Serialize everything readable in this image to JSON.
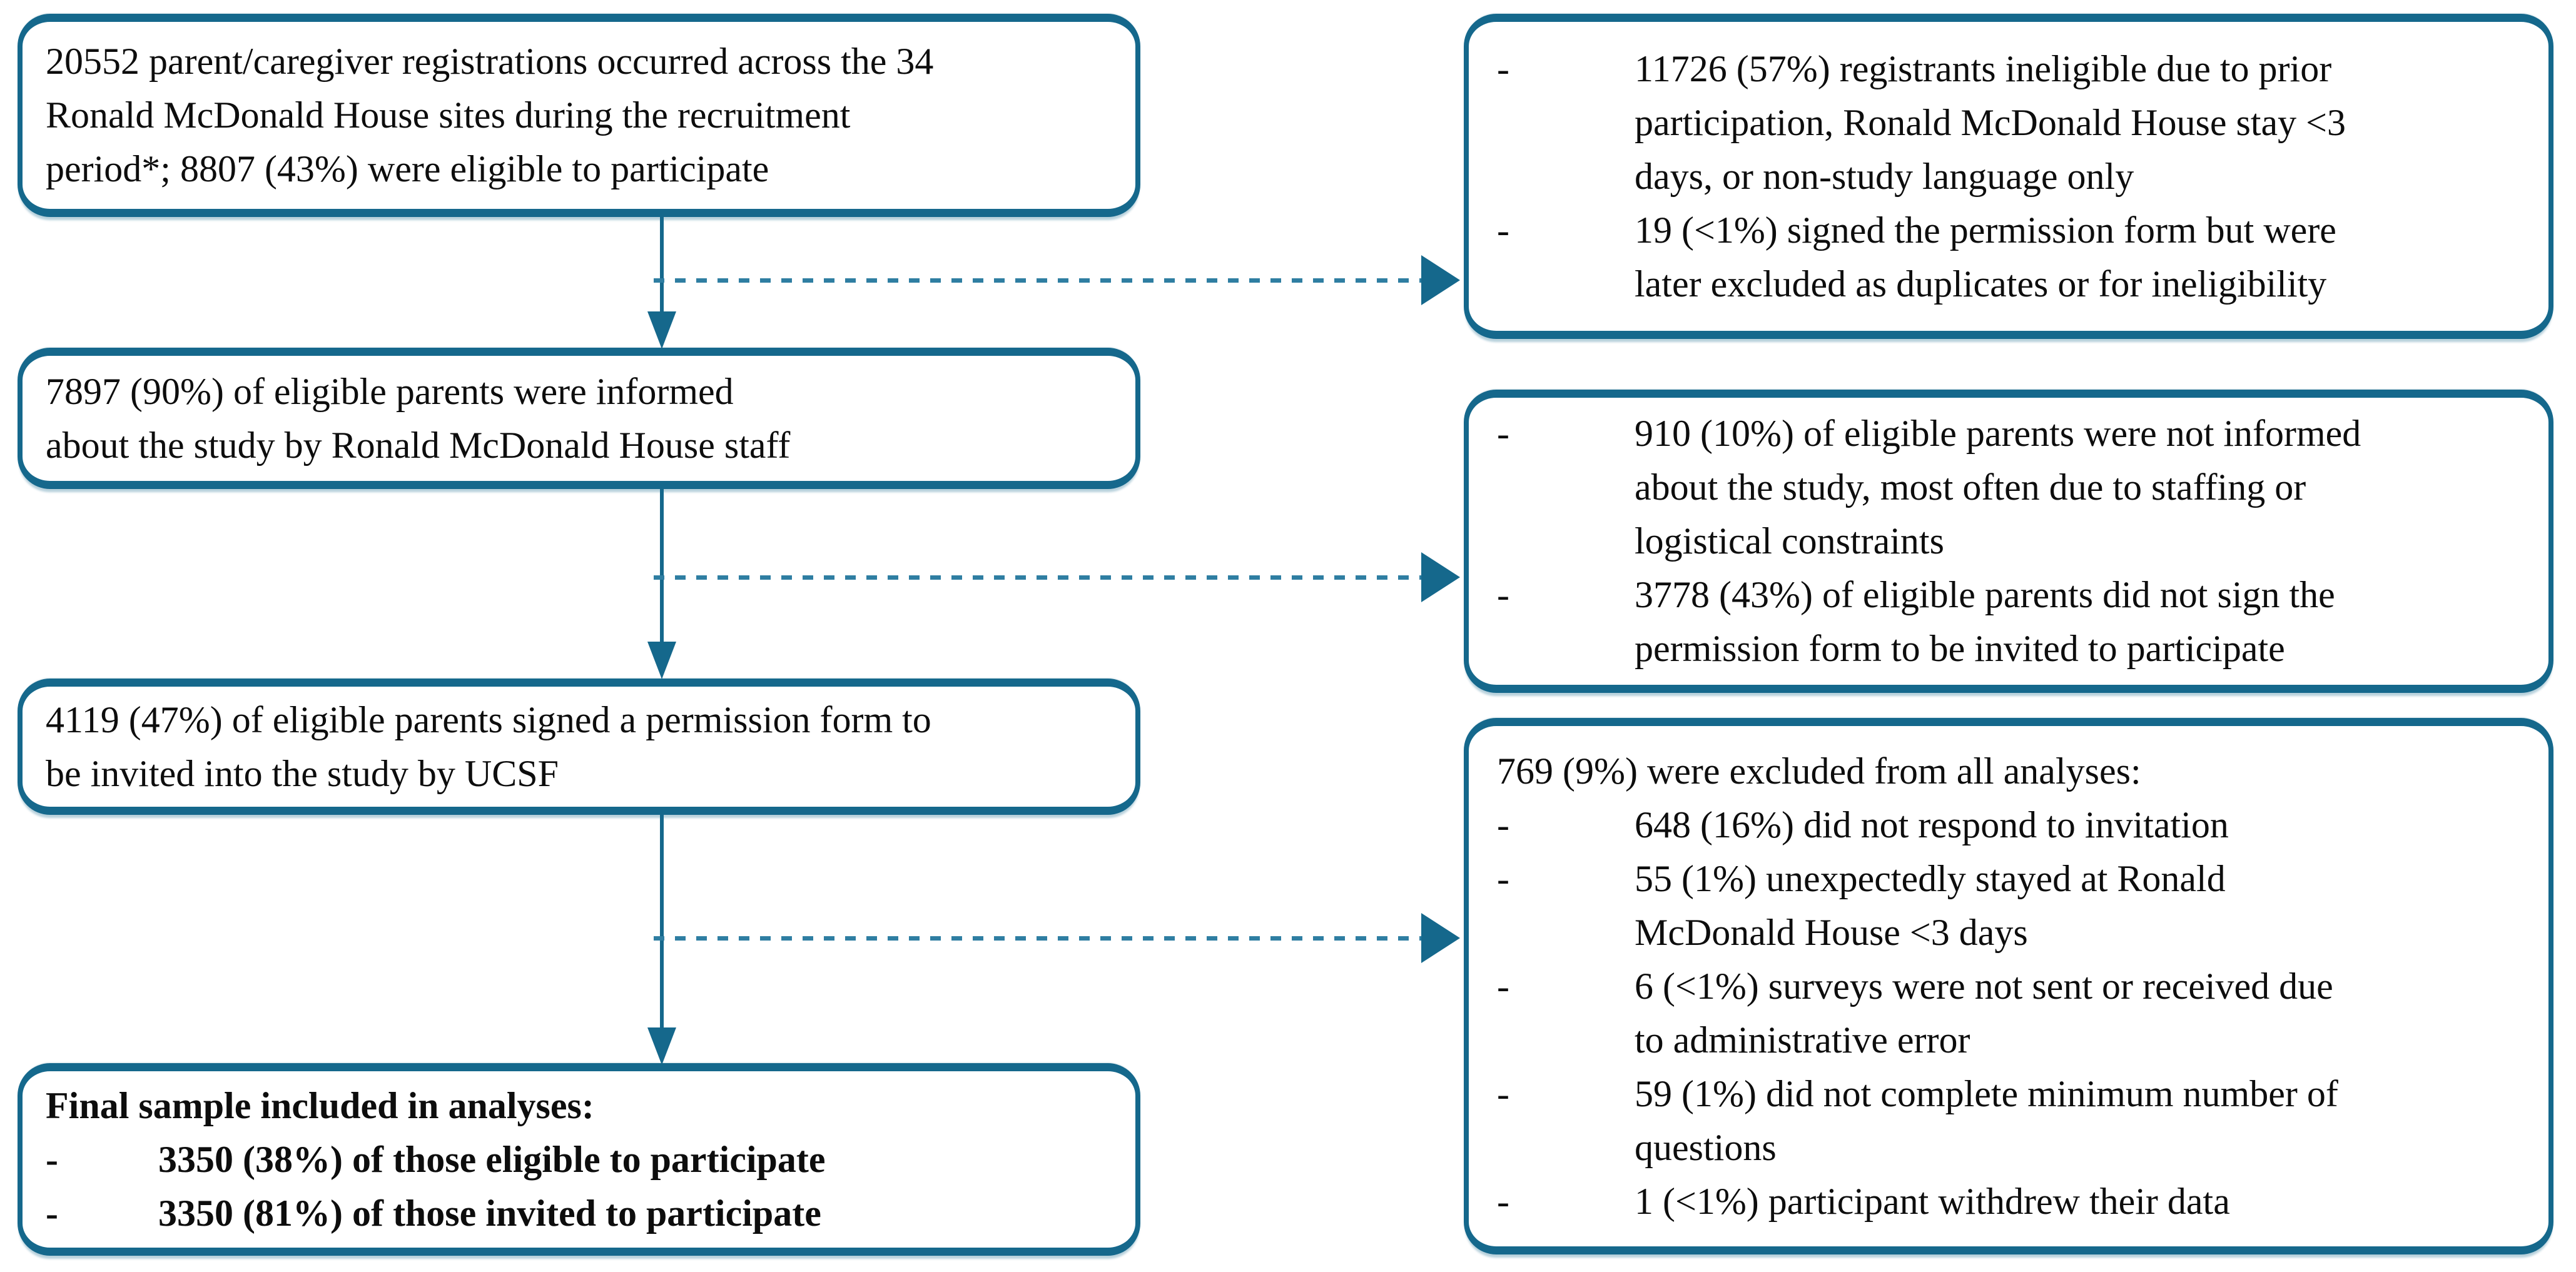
{
  "colors": {
    "accent": "#15688C",
    "dash_line": "#2F7EA2",
    "text": "#0d0d0d",
    "background": "#ffffff"
  },
  "diagram": {
    "left_boxes": [
      {
        "name": "registrations",
        "text": "20552 parent/caregiver registrations occurred across the 34\nRonald McDonald House sites during the recruitment\nperiod*; 8807 (43%) were eligible to participate"
      },
      {
        "name": "informed",
        "text": "7897 (90%) of eligible parents were informed\nabout the study by Ronald McDonald House staff"
      },
      {
        "name": "signed-permission",
        "text": "4119 (47%) of eligible parents signed a permission form to\nbe invited into the study by UCSF"
      },
      {
        "name": "final-sample",
        "header": "Final sample included in analyses:",
        "bullets": [
          {
            "marker": "-",
            "text": "3350 (38%) of those eligible to participate"
          },
          {
            "marker": "-",
            "text": "3350 (81%) of those invited to participate"
          }
        ]
      }
    ],
    "right_boxes": [
      {
        "name": "ineligible",
        "bullets": [
          {
            "marker": "-",
            "text": "11726 (57%) registrants ineligible due to prior\nparticipation, Ronald McDonald House stay <3\ndays, or non-study language only"
          },
          {
            "marker": "-",
            "text": "19 (<1%) signed the permission form but were\nlater excluded as duplicates or for ineligibility"
          }
        ]
      },
      {
        "name": "not-informed-or-unsigned",
        "bullets": [
          {
            "marker": "-",
            "text": "910 (10%) of eligible parents were not informed\nabout the study, most often due to staffing or\nlogistical constraints"
          },
          {
            "marker": "-",
            "text": "3778 (43%) of eligible parents did not sign the\npermission form to be invited to participate"
          }
        ]
      },
      {
        "name": "excluded-from-analyses",
        "header": "769 (9%) were excluded from all analyses:",
        "bullets": [
          {
            "marker": "-",
            "text": "648 (16%) did not respond to invitation"
          },
          {
            "marker": "-",
            "text": "55 (1%) unexpectedly stayed at Ronald\nMcDonald House <3 days"
          },
          {
            "marker": "-",
            "text": "6 (<1%) surveys were not sent or received due\nto administrative error"
          },
          {
            "marker": "-",
            "text": "59 (1%) did not complete minimum number of\nquestions"
          },
          {
            "marker": "-",
            "text": "1 (<1%) participant withdrew their data"
          }
        ]
      }
    ]
  }
}
